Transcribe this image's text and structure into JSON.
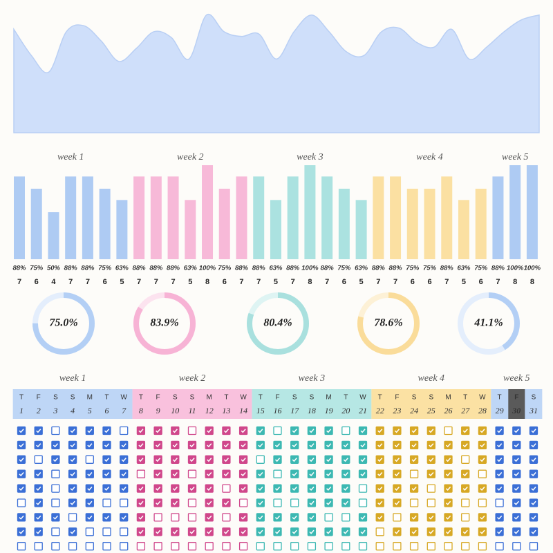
{
  "chart_data": [
    {
      "type": "area",
      "color": "#cfdffa",
      "line_color": "#b9cff4",
      "ylim": [
        0,
        100
      ],
      "values": [
        87,
        65,
        51,
        85,
        90,
        77,
        60,
        71,
        85,
        80,
        62,
        99,
        85,
        81,
        83,
        62,
        85,
        99,
        85,
        68,
        65,
        85,
        88,
        76,
        72,
        87,
        62,
        72,
        85,
        95,
        99
      ]
    },
    {
      "type": "bar",
      "ylim": [
        0,
        100
      ],
      "weeks": [
        {
          "label": "week 1",
          "color": "#aecbf3",
          "values": [
            88,
            75,
            50,
            88,
            88,
            75,
            63
          ],
          "value_labels": [
            "88%",
            "75%",
            "50%",
            "88%",
            "88%",
            "75%",
            "63%"
          ],
          "counts": [
            7,
            6,
            4,
            7,
            7,
            6,
            5
          ]
        },
        {
          "label": "week 2",
          "color": "#f7b9d8",
          "values": [
            88,
            88,
            88,
            63,
            100,
            75,
            88
          ],
          "value_labels": [
            "88%",
            "88%",
            "88%",
            "63%",
            "100%",
            "75%",
            "88%"
          ],
          "counts": [
            7,
            7,
            7,
            5,
            8,
            6,
            7
          ]
        },
        {
          "label": "week 3",
          "color": "#abe2e0",
          "values": [
            88,
            63,
            88,
            100,
            88,
            75,
            63
          ],
          "value_labels": [
            "88%",
            "63%",
            "88%",
            "100%",
            "88%",
            "75%",
            "63%"
          ],
          "counts": [
            7,
            5,
            7,
            8,
            7,
            6,
            5
          ]
        },
        {
          "label": "week 4",
          "color": "#fbe0a2",
          "values": [
            88,
            88,
            75,
            75,
            88,
            63,
            75
          ],
          "value_labels": [
            "88%",
            "88%",
            "75%",
            "75%",
            "88%",
            "63%",
            "75%"
          ],
          "counts": [
            7,
            7,
            6,
            6,
            7,
            5,
            6
          ]
        },
        {
          "label": "week 5",
          "color": "#aecbf3",
          "values": [
            88,
            100,
            100
          ],
          "value_labels": [
            "88%",
            "100%",
            "100%"
          ],
          "counts": [
            7,
            8,
            8
          ]
        }
      ]
    },
    {
      "type": "donut",
      "values": [
        75.0,
        83.9,
        80.4,
        78.6,
        41.1
      ],
      "value_labels": [
        "75.0%",
        "83.9%",
        "80.4%",
        "78.6%",
        "41.1%"
      ],
      "colors": [
        "#b3cff5",
        "#f7b3d5",
        "#a9e0de",
        "#fadc9a",
        "#b3cff5"
      ],
      "track_colors": [
        "#e4eefc",
        "#fce3ef",
        "#def4f3",
        "#fdf1d6",
        "#e4eefc"
      ]
    }
  ],
  "calendar": {
    "today": 30,
    "today_color": "#5a5a5a",
    "weeks": [
      {
        "label": "week 1",
        "header_color": "#bed6f6",
        "check_color": "#3b6fd6",
        "weekdays": [
          "T",
          "F",
          "S",
          "S",
          "M",
          "T",
          "W"
        ],
        "dates": [
          1,
          2,
          3,
          4,
          5,
          6,
          7
        ],
        "checks": [
          [
            1,
            1,
            0,
            1,
            1,
            1,
            0
          ],
          [
            1,
            1,
            1,
            1,
            1,
            1,
            1
          ],
          [
            1,
            0,
            1,
            1,
            0,
            1,
            1
          ],
          [
            1,
            1,
            0,
            1,
            1,
            1,
            1
          ],
          [
            1,
            1,
            0,
            1,
            1,
            1,
            1
          ],
          [
            0,
            1,
            0,
            1,
            1,
            0,
            0
          ],
          [
            1,
            1,
            1,
            0,
            1,
            1,
            1
          ],
          [
            1,
            1,
            0,
            1,
            0,
            0,
            0
          ],
          [
            0,
            0,
            0,
            0,
            0,
            0,
            0
          ]
        ]
      },
      {
        "label": "week 2",
        "header_color": "#f9c1dd",
        "check_color": "#d0478b",
        "weekdays": [
          "T",
          "F",
          "S",
          "S",
          "M",
          "T",
          "W"
        ],
        "dates": [
          8,
          9,
          10,
          11,
          12,
          13,
          14
        ],
        "checks": [
          [
            1,
            1,
            1,
            0,
            1,
            1,
            1
          ],
          [
            1,
            1,
            1,
            1,
            1,
            1,
            1
          ],
          [
            1,
            1,
            1,
            1,
            1,
            1,
            1
          ],
          [
            0,
            1,
            1,
            0,
            1,
            1,
            1
          ],
          [
            1,
            1,
            1,
            1,
            1,
            0,
            1
          ],
          [
            1,
            1,
            1,
            0,
            1,
            1,
            0
          ],
          [
            1,
            0,
            0,
            0,
            1,
            0,
            1
          ],
          [
            1,
            1,
            1,
            1,
            1,
            1,
            1
          ],
          [
            0,
            0,
            0,
            0,
            0,
            0,
            0
          ]
        ]
      },
      {
        "label": "week 3",
        "header_color": "#b6e7e4",
        "check_color": "#3cb8b2",
        "weekdays": [
          "T",
          "F",
          "S",
          "S",
          "M",
          "T",
          "W"
        ],
        "dates": [
          15,
          16,
          17,
          18,
          19,
          20,
          21
        ],
        "checks": [
          [
            1,
            0,
            1,
            1,
            1,
            0,
            1
          ],
          [
            1,
            1,
            1,
            1,
            1,
            1,
            1
          ],
          [
            0,
            1,
            1,
            1,
            1,
            1,
            1
          ],
          [
            1,
            0,
            1,
            1,
            1,
            1,
            1
          ],
          [
            1,
            1,
            1,
            1,
            1,
            1,
            0
          ],
          [
            1,
            0,
            0,
            1,
            1,
            1,
            0
          ],
          [
            1,
            1,
            1,
            1,
            0,
            0,
            1
          ],
          [
            1,
            1,
            1,
            1,
            1,
            1,
            1
          ],
          [
            0,
            0,
            0,
            0,
            0,
            0,
            0
          ]
        ]
      },
      {
        "label": "week 4",
        "header_color": "#fbe1a3",
        "check_color": "#d7a824",
        "weekdays": [
          "T",
          "F",
          "S",
          "S",
          "M",
          "T",
          "W"
        ],
        "dates": [
          22,
          23,
          24,
          25,
          26,
          27,
          28
        ],
        "checks": [
          [
            1,
            1,
            1,
            1,
            0,
            1,
            1
          ],
          [
            1,
            1,
            1,
            1,
            1,
            1,
            1
          ],
          [
            1,
            1,
            1,
            1,
            1,
            0,
            1
          ],
          [
            1,
            1,
            0,
            1,
            1,
            1,
            0
          ],
          [
            1,
            1,
            1,
            0,
            1,
            1,
            1
          ],
          [
            1,
            1,
            0,
            0,
            1,
            0,
            0
          ],
          [
            1,
            0,
            1,
            1,
            1,
            0,
            1
          ],
          [
            0,
            1,
            1,
            1,
            1,
            1,
            1
          ],
          [
            0,
            0,
            0,
            0,
            0,
            0,
            0
          ]
        ]
      },
      {
        "label": "week 5",
        "header_color": "#bed6f6",
        "check_color": "#3b6fd6",
        "weekdays": [
          "T",
          "F",
          "S"
        ],
        "dates": [
          29,
          30,
          31
        ],
        "checks": [
          [
            1,
            1,
            1
          ],
          [
            1,
            1,
            1
          ],
          [
            1,
            1,
            1
          ],
          [
            1,
            1,
            1
          ],
          [
            1,
            1,
            1
          ],
          [
            0,
            1,
            1
          ],
          [
            1,
            1,
            1
          ],
          [
            1,
            1,
            1
          ],
          [
            0,
            0,
            0
          ]
        ]
      }
    ]
  }
}
